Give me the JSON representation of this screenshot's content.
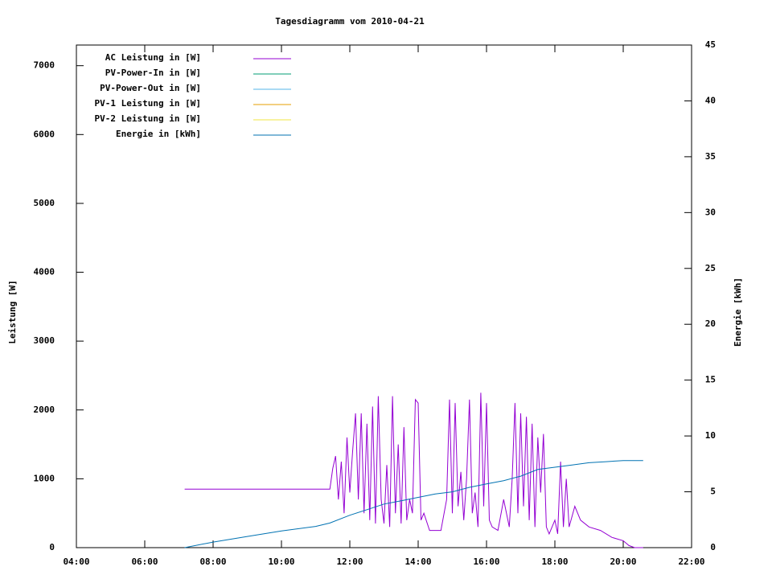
{
  "chart_data": {
    "type": "line",
    "title": "Tagesdiagramm vom 2010-04-21",
    "y_label": "Leistung [W]",
    "y2_label": "Energie [kWh]",
    "xlim": [
      "04:00",
      "22:00"
    ],
    "xticks": [
      "04:00",
      "06:00",
      "08:00",
      "10:00",
      "12:00",
      "14:00",
      "16:00",
      "18:00",
      "20:00",
      "22:00"
    ],
    "ylim": [
      0,
      7300
    ],
    "yticks": [
      0,
      1000,
      2000,
      3000,
      4000,
      5000,
      6000,
      7000
    ],
    "y2lim": [
      0,
      45
    ],
    "y2ticks": [
      0,
      5,
      10,
      15,
      20,
      25,
      30,
      35,
      40,
      45
    ],
    "legend": "upper left",
    "series": [
      {
        "name": "AC Leistung in [W]",
        "color": "#9400d3",
        "x": [
          "07:10",
          "11:25",
          "11:30",
          "11:35",
          "11:40",
          "11:45",
          "11:50",
          "11:55",
          "12:00",
          "12:05",
          "12:10",
          "12:15",
          "12:20",
          "12:25",
          "12:30",
          "12:35",
          "12:40",
          "12:45",
          "12:50",
          "12:55",
          "13:00",
          "13:05",
          "13:10",
          "13:15",
          "13:20",
          "13:25",
          "13:30",
          "13:35",
          "13:40",
          "13:45",
          "13:50",
          "13:55",
          "14:00",
          "14:05",
          "14:10",
          "14:20",
          "14:40",
          "14:50",
          "14:55",
          "15:00",
          "15:05",
          "15:10",
          "15:15",
          "15:20",
          "15:25",
          "15:30",
          "15:35",
          "15:40",
          "15:45",
          "15:50",
          "15:55",
          "16:00",
          "16:05",
          "16:10",
          "16:20",
          "16:30",
          "16:40",
          "16:45",
          "16:50",
          "16:55",
          "17:00",
          "17:05",
          "17:10",
          "17:15",
          "17:20",
          "17:25",
          "17:30",
          "17:35",
          "17:40",
          "17:45",
          "17:50",
          "18:00",
          "18:05",
          "18:10",
          "18:15",
          "18:20",
          "18:25",
          "18:35",
          "18:45",
          "19:00",
          "19:20",
          "19:40",
          "20:00",
          "20:10",
          "20:20",
          "20:35"
        ],
        "values": [
          850,
          850,
          1150,
          1330,
          700,
          1250,
          500,
          1600,
          800,
          1400,
          1950,
          700,
          1950,
          500,
          1800,
          400,
          2050,
          350,
          2200,
          700,
          350,
          1200,
          300,
          2200,
          500,
          1500,
          350,
          1750,
          400,
          700,
          500,
          2150,
          2100,
          400,
          500,
          250,
          250,
          700,
          2150,
          500,
          2100,
          600,
          1100,
          400,
          1000,
          2150,
          500,
          800,
          300,
          2250,
          600,
          2100,
          400,
          300,
          250,
          700,
          300,
          1000,
          2100,
          500,
          1950,
          600,
          1900,
          400,
          1800,
          300,
          1600,
          800,
          1650,
          300,
          200,
          400,
          200,
          1250,
          300,
          1000,
          300,
          600,
          400,
          300,
          250,
          150,
          100,
          30,
          0,
          0
        ]
      },
      {
        "name": "PV-Power-In in [W]",
        "color": "#009e73",
        "x": [],
        "values": []
      },
      {
        "name": "PV-Power-Out in [W]",
        "color": "#56b4e9",
        "x": [],
        "values": []
      },
      {
        "name": "PV-1 Leistung in [W]",
        "color": "#e69f00",
        "x": [],
        "values": []
      },
      {
        "name": "PV-2 Leistung in [W]",
        "color": "#f0e442",
        "x": [],
        "values": []
      },
      {
        "name": "Energie in [kWh]",
        "color": "#0072b2",
        "axis": "y2",
        "x": [
          "07:10",
          "08:00",
          "09:00",
          "10:00",
          "11:00",
          "11:25",
          "12:00",
          "12:30",
          "13:00",
          "13:30",
          "14:00",
          "14:30",
          "15:00",
          "15:30",
          "16:00",
          "16:30",
          "17:00",
          "17:30",
          "17:45",
          "18:00",
          "18:30",
          "19:00",
          "19:30",
          "20:00",
          "20:35"
        ],
        "values": [
          0,
          0.5,
          1.0,
          1.5,
          1.9,
          2.2,
          2.9,
          3.4,
          3.9,
          4.2,
          4.5,
          4.8,
          5.0,
          5.4,
          5.7,
          6.0,
          6.4,
          7.0,
          7.1,
          7.2,
          7.4,
          7.6,
          7.7,
          7.8,
          7.8
        ]
      }
    ]
  }
}
